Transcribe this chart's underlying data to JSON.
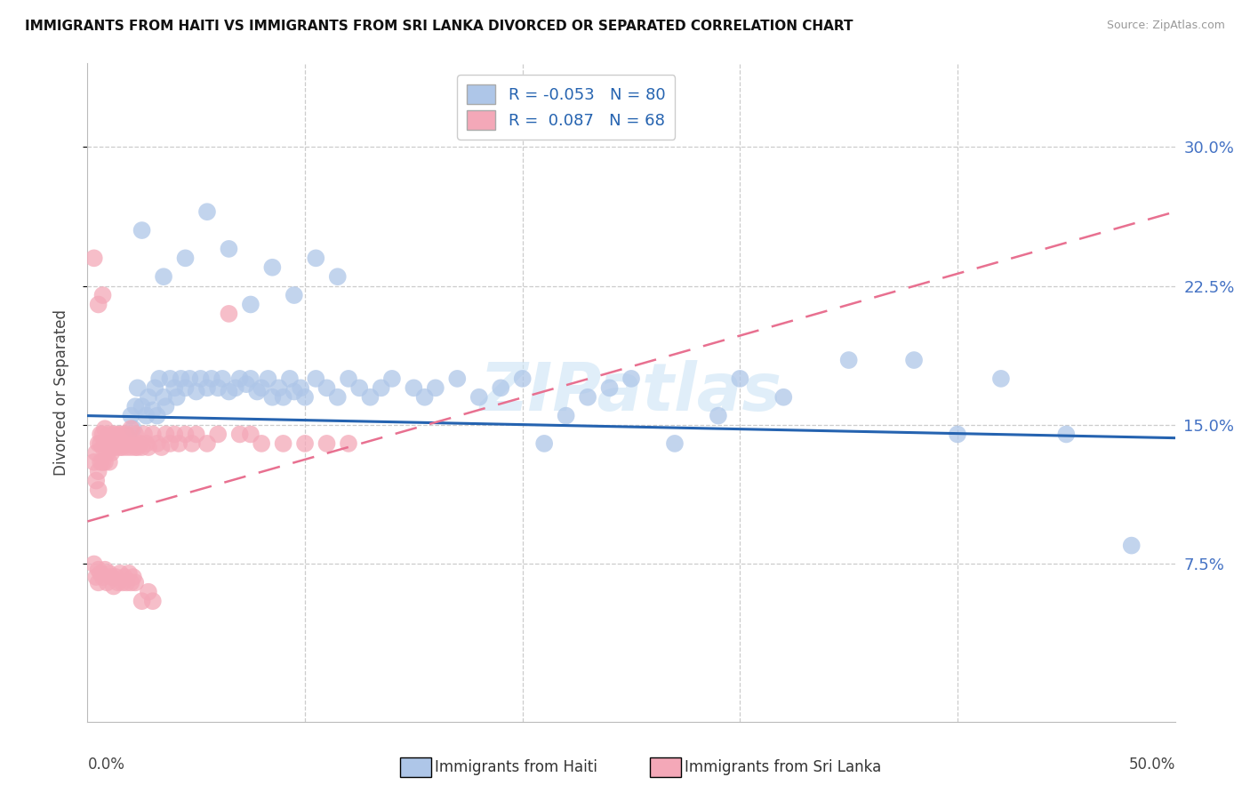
{
  "title": "IMMIGRANTS FROM HAITI VS IMMIGRANTS FROM SRI LANKA DIVORCED OR SEPARATED CORRELATION CHART",
  "source": "Source: ZipAtlas.com",
  "ylabel": "Divorced or Separated",
  "ytick_labels": [
    "7.5%",
    "15.0%",
    "22.5%",
    "30.0%"
  ],
  "ytick_values": [
    0.075,
    0.15,
    0.225,
    0.3
  ],
  "xlim": [
    0.0,
    0.5
  ],
  "ylim": [
    -0.01,
    0.345
  ],
  "legend_r_haiti": "-0.053",
  "legend_n_haiti": "80",
  "legend_r_srilanka": "0.087",
  "legend_n_srilanka": "68",
  "haiti_color": "#aec6e8",
  "srilanka_color": "#f4a8b8",
  "haiti_line_color": "#2563b0",
  "srilanka_line_color": "#e87090",
  "watermark": "ZIPatlas",
  "haiti_x": [
    0.02,
    0.021,
    0.022,
    0.023,
    0.025,
    0.027,
    0.028,
    0.03,
    0.031,
    0.032,
    0.033,
    0.035,
    0.036,
    0.038,
    0.04,
    0.041,
    0.043,
    0.045,
    0.047,
    0.05,
    0.052,
    0.055,
    0.057,
    0.06,
    0.062,
    0.065,
    0.068,
    0.07,
    0.073,
    0.075,
    0.078,
    0.08,
    0.083,
    0.085,
    0.088,
    0.09,
    0.093,
    0.095,
    0.098,
    0.1,
    0.105,
    0.11,
    0.115,
    0.12,
    0.125,
    0.13,
    0.135,
    0.14,
    0.15,
    0.155,
    0.16,
    0.17,
    0.18,
    0.19,
    0.2,
    0.21,
    0.22,
    0.23,
    0.24,
    0.25,
    0.27,
    0.29,
    0.3,
    0.32,
    0.35,
    0.38,
    0.4,
    0.42,
    0.45,
    0.48,
    0.025,
    0.035,
    0.045,
    0.055,
    0.065,
    0.075,
    0.085,
    0.095,
    0.105,
    0.115
  ],
  "haiti_y": [
    0.155,
    0.148,
    0.16,
    0.17,
    0.16,
    0.155,
    0.165,
    0.158,
    0.17,
    0.155,
    0.175,
    0.165,
    0.16,
    0.175,
    0.17,
    0.165,
    0.175,
    0.17,
    0.175,
    0.168,
    0.175,
    0.17,
    0.175,
    0.17,
    0.175,
    0.168,
    0.17,
    0.175,
    0.172,
    0.175,
    0.168,
    0.17,
    0.175,
    0.165,
    0.17,
    0.165,
    0.175,
    0.168,
    0.17,
    0.165,
    0.175,
    0.17,
    0.165,
    0.175,
    0.17,
    0.165,
    0.17,
    0.175,
    0.17,
    0.165,
    0.17,
    0.175,
    0.165,
    0.17,
    0.175,
    0.14,
    0.155,
    0.165,
    0.17,
    0.175,
    0.14,
    0.155,
    0.175,
    0.165,
    0.185,
    0.185,
    0.145,
    0.175,
    0.145,
    0.085,
    0.255,
    0.23,
    0.24,
    0.265,
    0.245,
    0.215,
    0.235,
    0.22,
    0.24,
    0.23
  ],
  "srilanka_x": [
    0.003,
    0.004,
    0.004,
    0.005,
    0.005,
    0.005,
    0.006,
    0.006,
    0.006,
    0.007,
    0.007,
    0.007,
    0.008,
    0.008,
    0.008,
    0.009,
    0.009,
    0.01,
    0.01,
    0.01,
    0.011,
    0.011,
    0.012,
    0.012,
    0.013,
    0.013,
    0.014,
    0.015,
    0.015,
    0.016,
    0.016,
    0.017,
    0.018,
    0.018,
    0.019,
    0.02,
    0.02,
    0.021,
    0.022,
    0.022,
    0.023,
    0.024,
    0.025,
    0.026,
    0.027,
    0.028,
    0.03,
    0.032,
    0.034,
    0.036,
    0.038,
    0.04,
    0.042,
    0.045,
    0.048,
    0.05,
    0.055,
    0.06,
    0.065,
    0.07,
    0.075,
    0.08,
    0.09,
    0.1,
    0.11,
    0.12,
    0.003,
    0.005,
    0.007
  ],
  "srilanka_y": [
    0.13,
    0.12,
    0.135,
    0.14,
    0.125,
    0.115,
    0.13,
    0.14,
    0.145,
    0.13,
    0.138,
    0.145,
    0.13,
    0.14,
    0.148,
    0.135,
    0.14,
    0.13,
    0.138,
    0.145,
    0.135,
    0.14,
    0.138,
    0.145,
    0.138,
    0.145,
    0.14,
    0.138,
    0.145,
    0.138,
    0.145,
    0.14,
    0.138,
    0.145,
    0.14,
    0.138,
    0.148,
    0.14,
    0.138,
    0.145,
    0.138,
    0.14,
    0.138,
    0.145,
    0.14,
    0.138,
    0.145,
    0.14,
    0.138,
    0.145,
    0.14,
    0.145,
    0.14,
    0.145,
    0.14,
    0.145,
    0.14,
    0.145,
    0.21,
    0.145,
    0.145,
    0.14,
    0.14,
    0.14,
    0.14,
    0.14,
    0.24,
    0.215,
    0.22
  ],
  "srilanka_extra_x": [
    0.003,
    0.004,
    0.005,
    0.005,
    0.006,
    0.007,
    0.008,
    0.009,
    0.01,
    0.011,
    0.012,
    0.013,
    0.014,
    0.015,
    0.016,
    0.017,
    0.018,
    0.019,
    0.02,
    0.021,
    0.022,
    0.025,
    0.028,
    0.03
  ],
  "srilanka_extra_y": [
    0.075,
    0.068,
    0.072,
    0.065,
    0.07,
    0.068,
    0.072,
    0.065,
    0.07,
    0.068,
    0.063,
    0.068,
    0.065,
    0.07,
    0.065,
    0.068,
    0.065,
    0.07,
    0.065,
    0.068,
    0.065,
    0.055,
    0.06,
    0.055
  ]
}
